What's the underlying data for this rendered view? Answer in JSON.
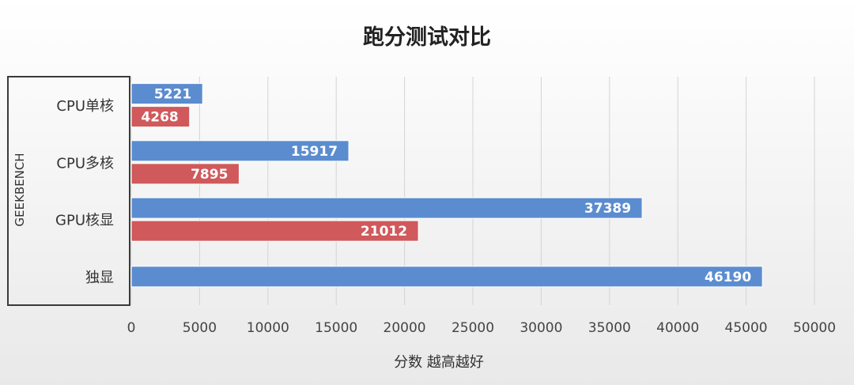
{
  "chart_data": {
    "type": "bar",
    "orientation": "horizontal",
    "title": "跑分测试对比",
    "xlabel": "分数 越高越好",
    "ylabel": "GEEKBENCH",
    "categories": [
      "CPU单核",
      "CPU多核",
      "GPU核显",
      "独显"
    ],
    "series": [
      {
        "values": [
          5221,
          15917,
          37389,
          46190
        ],
        "color": "#5b8ccf"
      },
      {
        "values": [
          4268,
          7895,
          21012,
          null
        ],
        "color": "#d0595c"
      }
    ],
    "xlim": [
      0,
      50000
    ],
    "xticks": [
      0,
      5000,
      10000,
      15000,
      20000,
      25000,
      30000,
      35000,
      40000,
      45000,
      50000
    ],
    "grid": true,
    "legend": "none"
  }
}
